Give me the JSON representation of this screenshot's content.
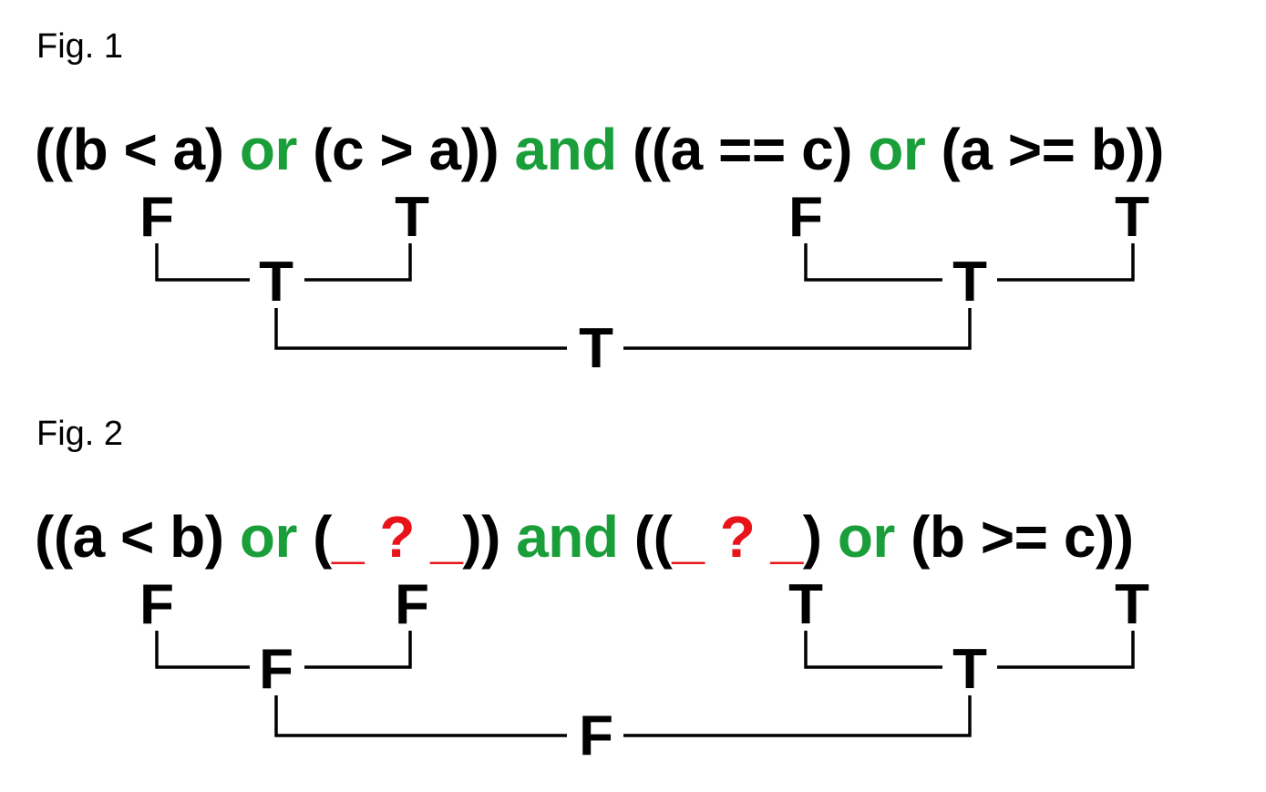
{
  "figures": [
    {
      "label": "Fig. 1",
      "expression": [
        {
          "text": "((b < a) ",
          "kind": "plain"
        },
        {
          "text": "or",
          "kind": "op"
        },
        {
          "text": " (c > a)) ",
          "kind": "plain"
        },
        {
          "text": "and",
          "kind": "op"
        },
        {
          "text": " ((a == c) ",
          "kind": "plain"
        },
        {
          "text": "or",
          "kind": "op"
        },
        {
          "text": " (a >= b))",
          "kind": "plain"
        }
      ],
      "values": {
        "leaf1": "F",
        "leaf2": "T",
        "leaf3": "F",
        "leaf4": "T",
        "mid_left": "T",
        "mid_right": "T",
        "root": "T"
      }
    },
    {
      "label": "Fig. 2",
      "expression": [
        {
          "text": "((a < b) ",
          "kind": "plain"
        },
        {
          "text": "or",
          "kind": "op"
        },
        {
          "text": " (",
          "kind": "plain"
        },
        {
          "text": "_ ? _",
          "kind": "blank"
        },
        {
          "text": ")) ",
          "kind": "plain"
        },
        {
          "text": "and",
          "kind": "op"
        },
        {
          "text": " ((",
          "kind": "plain"
        },
        {
          "text": "_ ? _",
          "kind": "blank"
        },
        {
          "text": ") ",
          "kind": "plain"
        },
        {
          "text": "or",
          "kind": "op"
        },
        {
          "text": " (b >= c))",
          "kind": "plain"
        }
      ],
      "values": {
        "leaf1": "F",
        "leaf2": "F",
        "leaf3": "T",
        "leaf4": "T",
        "mid_left": "F",
        "mid_right": "T",
        "root": "F"
      }
    }
  ],
  "colors": {
    "operator": "#1a9e3a",
    "blank": "#e8141a",
    "text": "#000000"
  }
}
